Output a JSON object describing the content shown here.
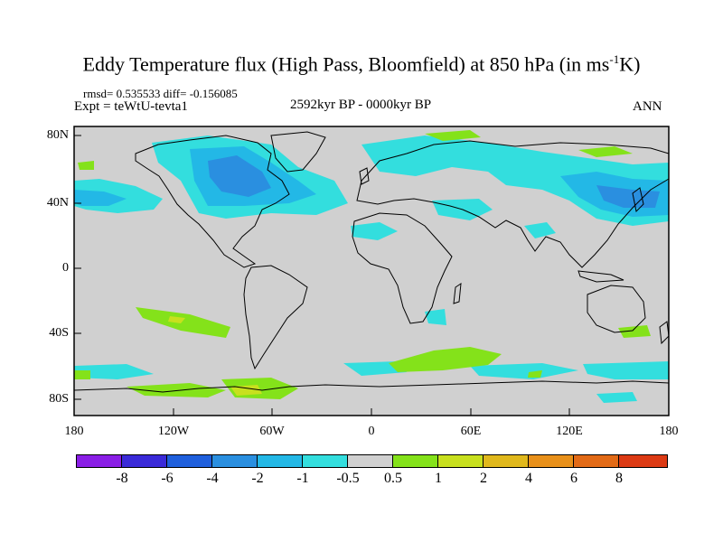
{
  "title_main": "Eddy Temperature flux (High Pass, Bloomfield) at 850 hPa (in ms",
  "title_sup": "-1",
  "title_tail": "K)",
  "stats": "rmsd= 0.535533 diff= -0.156085",
  "expt": "Expt = teWtU-tevta1",
  "period": "2592kyr BP - 0000kyr BP",
  "season": "ANN",
  "lat_labels": [
    "80N",
    "40N",
    "0",
    "40S",
    "80S"
  ],
  "lon_labels": [
    "180",
    "120W",
    "60W",
    "0",
    "60E",
    "120E",
    "180"
  ],
  "colorbar": {
    "labels": [
      "-8",
      "-6",
      "-4",
      "-2",
      "-1",
      "-0.5",
      "0.5",
      "1",
      "2",
      "4",
      "6",
      "8"
    ],
    "colors": [
      "#8a1ee6",
      "#3a2ad8",
      "#1f5fdc",
      "#2a8fe0",
      "#23b8e6",
      "#33dede",
      "#d0d0d0",
      "#84e21a",
      "#c8e01e",
      "#e0b81c",
      "#e8901a",
      "#e26a16",
      "#dc3a14"
    ]
  },
  "map_colors": {
    "background": "#d0d0d0",
    "cyan": "#33dede",
    "light_blue": "#23b8e6",
    "mid_blue": "#2a8fe0",
    "green": "#84e21a",
    "yellow": "#c8e01e"
  }
}
